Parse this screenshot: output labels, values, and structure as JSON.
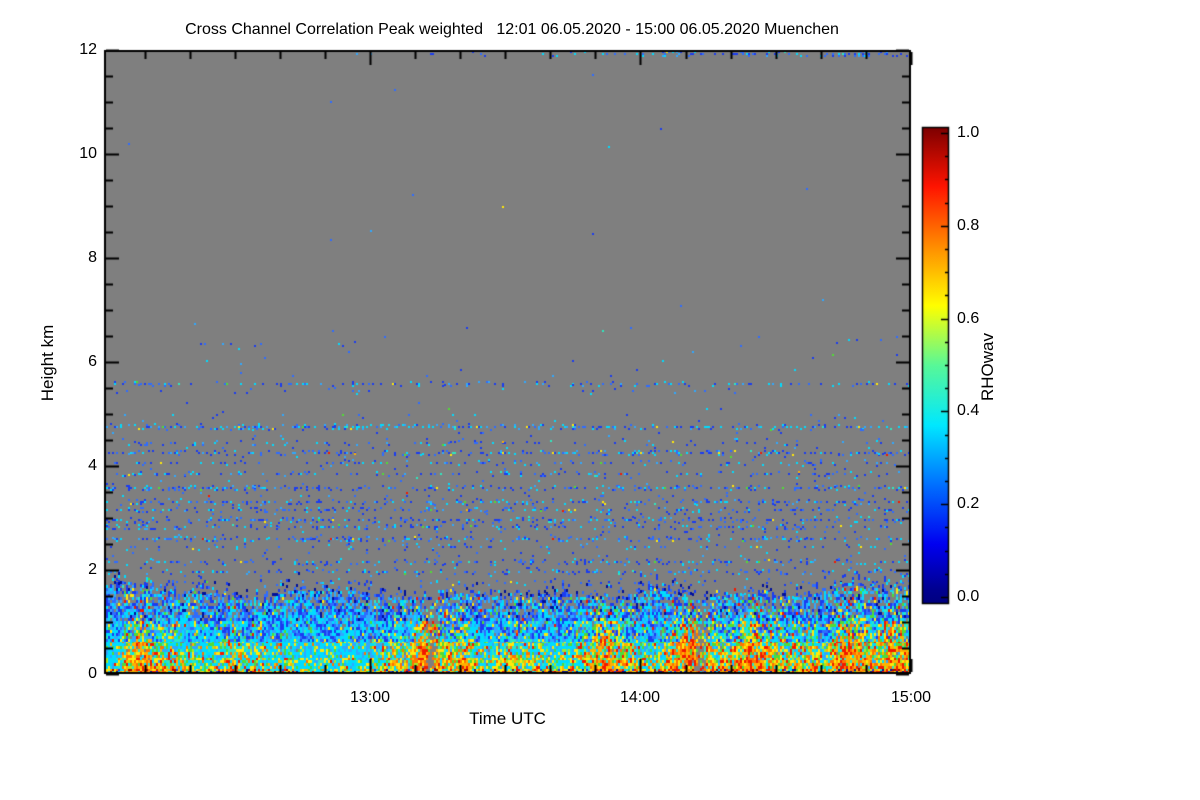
{
  "chart_data": {
    "type": "heatmap",
    "title": "Cross Channel Correlation Peak weighted   12:01 06.05.2020 - 15:00 06.05.2020 Muenchen",
    "xlabel": "Time UTC",
    "ylabel": "Height km",
    "x_axis": {
      "start": "12:01",
      "end": "15:00",
      "start_minute": 721,
      "end_minute": 900,
      "tick_labels": [
        "13:00",
        "14:00",
        "15:00"
      ],
      "tick_minutes": [
        780,
        840,
        900
      ],
      "minor_step_min": 10
    },
    "y_axis": {
      "min": 0,
      "max": 12,
      "major_ticks": [
        0,
        2,
        4,
        6,
        8,
        10,
        12
      ],
      "minor_step": 0.5
    },
    "colorbar": {
      "label": "RHOwav",
      "tick_labels": [
        "0.0",
        "0.2",
        "0.4",
        "0.6",
        "0.8",
        "1.0"
      ],
      "tick_values": [
        0,
        0.2,
        0.4,
        0.6,
        0.8,
        1.0
      ],
      "minor_step": 0.05,
      "colormap": [
        [
          0.0,
          "#00007f"
        ],
        [
          0.03,
          "#000090"
        ],
        [
          0.125,
          "#0000f0"
        ],
        [
          0.25,
          "#0070ff"
        ],
        [
          0.375,
          "#00e8ff"
        ],
        [
          0.5,
          "#58f898"
        ],
        [
          0.625,
          "#ffff00"
        ],
        [
          0.75,
          "#ff8c00"
        ],
        [
          0.875,
          "#ff1400"
        ],
        [
          1.0,
          "#7c0000"
        ]
      ]
    },
    "colors": {
      "page": "#ffffff",
      "background": "#7f7f7f",
      "frame": "#000000",
      "text": "#000000"
    },
    "palette": {
      "navy": "#000f9b",
      "blue": "#1a3cf0",
      "royal": "#2e6cff",
      "sky": "#2fa8ff",
      "cyan": "#00dcff",
      "teal": "#2ee8c0",
      "green": "#4fdc35",
      "lime": "#a8e822",
      "yellow": "#ffe90a",
      "gold": "#ffb000",
      "orange": "#ff7300",
      "red": "#f21800",
      "darkred": "#9e0000"
    },
    "field": {
      "seed": 1337,
      "cell": [
        2,
        3
      ],
      "warm_set": [
        "gold",
        "orange",
        "red",
        "darkred"
      ],
      "cool_set": [
        "blue",
        "royal",
        "navy",
        "cyan",
        "sky"
      ],
      "bands": [
        {
          "h0": 0.0,
          "h1": 0.1,
          "d": 1.0,
          "mix": [
            [
              "yellow",
              22
            ],
            [
              "gold",
              20
            ],
            [
              "orange",
              18
            ],
            [
              "red",
              16
            ],
            [
              "darkred",
              7
            ],
            [
              "teal",
              6
            ],
            [
              "cyan",
              7
            ],
            [
              "green",
              4
            ]
          ]
        },
        {
          "h0": 0.1,
          "h1": 0.3,
          "d": 0.99,
          "mix": [
            [
              "yellow",
              20
            ],
            [
              "gold",
              15
            ],
            [
              "orange",
              13
            ],
            [
              "red",
              12
            ],
            [
              "green",
              10
            ],
            [
              "teal",
              8
            ],
            [
              "cyan",
              13
            ],
            [
              "lime",
              6
            ],
            [
              "sky",
              3
            ]
          ]
        },
        {
          "h0": 0.3,
          "h1": 0.62,
          "d": 0.97,
          "mix": [
            [
              "cyan",
              19
            ],
            [
              "teal",
              12
            ],
            [
              "green",
              12
            ],
            [
              "yellow",
              15
            ],
            [
              "gold",
              10
            ],
            [
              "orange",
              9
            ],
            [
              "red",
              8
            ],
            [
              "sky",
              9
            ],
            [
              "lime",
              6
            ]
          ]
        },
        {
          "h0": 0.62,
          "h1": 1.02,
          "d": 0.95,
          "mix": [
            [
              "cyan",
              25
            ],
            [
              "sky",
              15
            ],
            [
              "teal",
              11
            ],
            [
              "green",
              10
            ],
            [
              "yellow",
              10
            ],
            [
              "blue",
              13
            ],
            [
              "royal",
              9
            ],
            [
              "gold",
              3
            ],
            [
              "orange",
              2
            ],
            [
              "red",
              2
            ]
          ]
        }
      ],
      "cap": {
        "h0": 1.02,
        "dBot": 0.92,
        "dTop": 0.5,
        "mix": [
          [
            "cyan",
            22
          ],
          [
            "sky",
            16
          ],
          [
            "blue",
            24
          ],
          [
            "royal",
            16
          ],
          [
            "teal",
            6
          ],
          [
            "green",
            5
          ],
          [
            "yellow",
            5
          ],
          [
            "navy",
            4
          ],
          [
            "red",
            2
          ]
        ]
      },
      "fringe": {
        "depth": 0.38,
        "d": 0.34,
        "mix": [
          [
            "blue",
            38
          ],
          [
            "navy",
            26
          ],
          [
            "royal",
            22
          ],
          [
            "cyan",
            10
          ],
          [
            "sky",
            2
          ],
          [
            "yellow",
            1
          ],
          [
            "red",
            1
          ]
        ]
      },
      "bl_top": {
        "base": 1.42,
        "bumps": [
          [
            0.015,
            0.05,
            0.3
          ],
          [
            0.1,
            0.05,
            0.12
          ],
          [
            0.27,
            0.07,
            0.17
          ],
          [
            0.45,
            0.03,
            0.08
          ],
          [
            0.56,
            0.04,
            0.1
          ],
          [
            0.685,
            0.03,
            0.22
          ],
          [
            0.8,
            0.03,
            0.1
          ],
          [
            0.93,
            0.05,
            0.22
          ],
          [
            0.99,
            0.02,
            0.15
          ]
        ]
      },
      "plumes": [
        [
          0.045,
          0.012,
          1.5
        ],
        [
          0.155,
          0.01,
          1.2
        ],
        [
          0.4,
          0.012,
          2.2
        ],
        [
          0.445,
          0.008,
          1.2
        ],
        [
          0.62,
          0.01,
          1.5
        ],
        [
          0.705,
          0.022,
          1.8
        ],
        [
          0.73,
          0.012,
          1.6
        ],
        [
          0.8,
          0.012,
          1.5
        ],
        [
          0.875,
          0.01,
          1.2
        ],
        [
          0.925,
          0.015,
          1.9
        ],
        [
          0.975,
          0.012,
          1.8
        ]
      ],
      "domes": [
        [
          0.005,
          0.012,
          2.0
        ],
        [
          0.13,
          0.04,
          1.1
        ],
        [
          0.24,
          0.05,
          1.5
        ],
        [
          0.31,
          0.04,
          1.3
        ],
        [
          0.47,
          0.02,
          0.9
        ],
        [
          0.555,
          0.025,
          1.2
        ],
        [
          0.685,
          0.018,
          2.3
        ],
        [
          0.88,
          0.018,
          0.9
        ]
      ],
      "gaps": [
        [
          0.405,
          0.006,
          0.55
        ],
        [
          0.737,
          0.006,
          0.6
        ]
      ],
      "streak_mix": [
        [
          "blue",
          38
        ],
        [
          "royal",
          27
        ],
        [
          "cyan",
          19
        ],
        [
          "sky",
          8
        ],
        [
          "teal",
          2
        ],
        [
          "green",
          2.5
        ],
        [
          "yellow",
          2
        ],
        [
          "gold",
          0.7
        ],
        [
          "red",
          0.8
        ]
      ],
      "streaks": [
        {
          "h": 0.03,
          "d": 0.22,
          "mix": [
            [
              "navy",
              60
            ],
            [
              "blue",
              25
            ],
            [
              "darkred",
              5
            ],
            [
              "red",
              5
            ],
            [
              "cyan",
              5
            ]
          ]
        },
        {
          "h": 1.75,
          "d": 0.08
        },
        {
          "h": 1.97,
          "d": 0.2
        },
        {
          "h": 2.15,
          "d": 0.22
        },
        {
          "h": 2.45,
          "d": 0.1
        },
        {
          "h": 2.6,
          "d": 0.25
        },
        {
          "h": 2.82,
          "d": 0.2
        },
        {
          "h": 2.97,
          "d": 0.28
        },
        {
          "h": 3.15,
          "d": 0.22
        },
        {
          "h": 3.3,
          "d": 0.26
        },
        {
          "h": 3.58,
          "d": 0.28
        },
        {
          "h": 3.85,
          "d": 0.16
        },
        {
          "h": 4.05,
          "d": 0.13
        },
        {
          "h": 4.25,
          "d": 0.28
        },
        {
          "h": 4.45,
          "d": 0.1
        },
        {
          "h": 4.75,
          "d": 0.34,
          "mix": [
            [
              "cyan",
              38
            ],
            [
              "sky",
              18
            ],
            [
              "blue",
              22
            ],
            [
              "royal",
              12
            ],
            [
              "teal",
              5
            ],
            [
              "green",
              3
            ],
            [
              "yellow",
              2
            ]
          ]
        },
        {
          "h": 5.57,
          "d": 0.16
        },
        {
          "h": 5.45,
          "d": 0.03
        },
        {
          "h": 6.35,
          "d": 0.12,
          "x0": 0.1,
          "x1": 0.21
        },
        {
          "h": 6.35,
          "d": 0.15,
          "x0": 0.285,
          "x1": 0.32
        },
        {
          "h": 11.93,
          "d": 0.4,
          "x0": 0.52,
          "x1": 1.0,
          "ramp": 1
        },
        {
          "h": 11.93,
          "d": 0.03,
          "x0": 0.3,
          "x1": 0.52
        }
      ],
      "scatter": [
        {
          "h0": 1.55,
          "h1": 1.95,
          "d": 0.03
        },
        {
          "h0": 1.95,
          "h1": 3.5,
          "d": 0.035
        },
        {
          "h0": 3.5,
          "h1": 5.0,
          "d": 0.02
        },
        {
          "h0": 5.0,
          "h1": 6.7,
          "d": 0.004
        },
        {
          "h0": 6.7,
          "h1": 11.8,
          "d": 0.0002
        }
      ]
    }
  }
}
